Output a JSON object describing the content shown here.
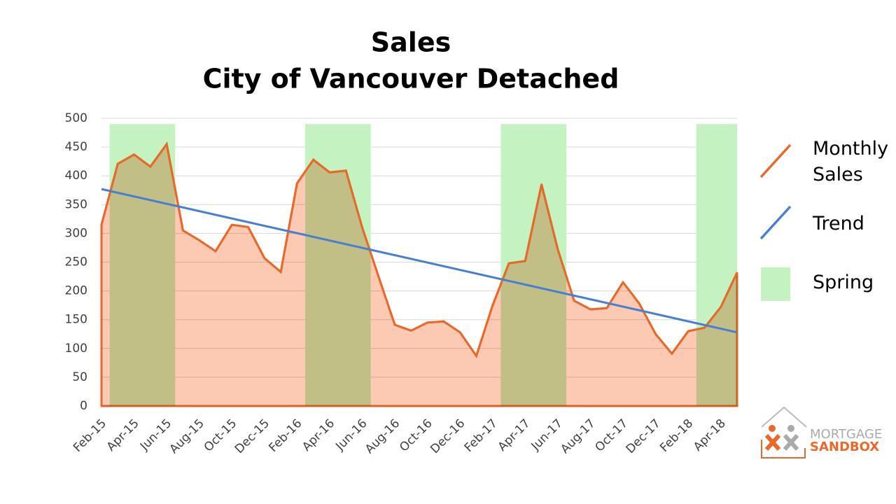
{
  "chart_data": {
    "type": "area",
    "title": "Sales",
    "subtitle": "City of Vancouver Detached",
    "categories": [
      "Feb-15",
      null,
      "Apr-15",
      null,
      "Jun-15",
      null,
      "Aug-15",
      null,
      "Oct-15",
      null,
      "Dec-15",
      null,
      "Feb-16",
      null,
      "Apr-16",
      null,
      "Jun-16",
      null,
      "Aug-16",
      null,
      "Oct-16",
      null,
      "Dec-16",
      null,
      "Feb-17",
      null,
      "Apr-17",
      null,
      "Jun-17",
      null,
      "Aug-17",
      null,
      "Oct-17",
      null,
      "Dec-17",
      null,
      "Feb-18",
      null,
      "Apr-18",
      null
    ],
    "series": [
      {
        "name": "Monthly Sales",
        "color": "#e8692a",
        "fill": "#fcc9b2",
        "values": [
          315,
          421,
          437,
          416,
          455,
          305,
          288,
          269,
          315,
          311,
          257,
          233,
          387,
          428,
          406,
          409,
          310,
          225,
          141,
          131,
          145,
          147,
          128,
          87,
          175,
          248,
          252,
          385,
          272,
          183,
          168,
          170,
          215,
          178,
          125,
          91,
          130,
          136,
          172,
          232
        ]
      },
      {
        "name": "Spring",
        "color": "#c4f2c0",
        "values": [
          null,
          490,
          490,
          490,
          490,
          null,
          null,
          null,
          null,
          null,
          null,
          null,
          null,
          490,
          490,
          490,
          490,
          null,
          null,
          null,
          null,
          null,
          null,
          null,
          null,
          490,
          490,
          490,
          490,
          null,
          null,
          null,
          null,
          null,
          null,
          null,
          null,
          490,
          490,
          490
        ]
      }
    ],
    "trend": {
      "name": "Trend",
      "color": "#4a7fd0",
      "start": 377,
      "end": 128
    },
    "ylim": [
      0,
      500
    ],
    "yticks": [
      0,
      50,
      100,
      150,
      200,
      250,
      300,
      350,
      400,
      450,
      500
    ],
    "grid": true
  },
  "logo": {
    "line1": "MORTGAGE",
    "line2": "SANDBOX"
  }
}
